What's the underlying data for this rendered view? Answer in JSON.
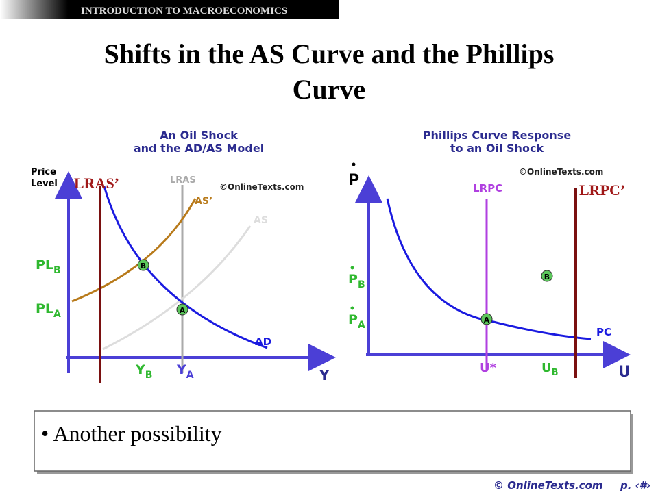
{
  "header": {
    "banner": "INTRODUCTION TO MACROECONOMICS",
    "title": "Shifts in the AS Curve and the Phillips Curve"
  },
  "left_diagram": {
    "title": [
      "An Oil Shock",
      "and the AD/AS Model"
    ],
    "y_axis_label": [
      "Price",
      "Level"
    ],
    "x_axis_label": "Y",
    "watermark": "©OnlineTexts.com",
    "shifted_line": "LRAS’",
    "labels": {
      "lras": "LRAS",
      "as_shifted": "AS’",
      "as": "AS",
      "ad": "AD",
      "point_b": "B",
      "point_a": "A"
    },
    "price_levels": [
      {
        "main": "PL",
        "sub": "B"
      },
      {
        "main": "PL",
        "sub": "A"
      }
    ],
    "outputs": [
      {
        "main": "Y",
        "sub": "B"
      },
      {
        "main": "Y",
        "sub": "A"
      }
    ]
  },
  "right_diagram": {
    "title": [
      "Phillips Curve Response",
      "to an Oil Shock"
    ],
    "y_axis_label": "P",
    "x_axis_label": "U",
    "watermark": "©OnlineTexts.com",
    "shifted_line": "LRPC’",
    "labels": {
      "lrpc": "LRPC",
      "pc": "PC",
      "point_a": "A",
      "point_b": "B",
      "u_star": "U*"
    },
    "inflation_levels": [
      {
        "main": "P",
        "sub": "B"
      },
      {
        "main": "P",
        "sub": "A"
      }
    ],
    "unemployment": {
      "main": "U",
      "sub": "B"
    }
  },
  "bullets": [
    "Another possibility"
  ],
  "footer": {
    "copyright": "© OnlineTexts.com",
    "page": "p. ‹#›"
  }
}
